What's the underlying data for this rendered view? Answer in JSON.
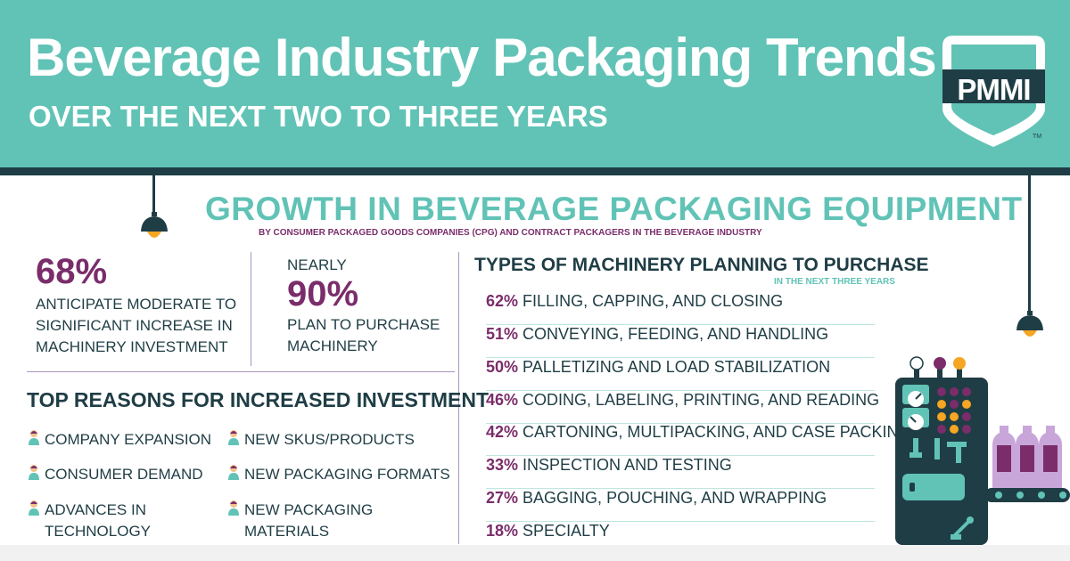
{
  "header": {
    "title": "Beverage Industry Packaging Trends",
    "subtitle": "OVER THE NEXT TWO TO THREE YEARS",
    "logo_text": "PMMI",
    "logo_tm": "TM"
  },
  "section": {
    "title": "GROWTH IN BEVERAGE PACKAGING EQUIPMENT",
    "subtitle": "BY CONSUMER PACKAGED GOODS COMPANIES (CPG) AND CONTRACT PACKAGERS IN THE BEVERAGE INDUSTRY"
  },
  "stats": {
    "left": {
      "value": "68%",
      "line1": "ANTICIPATE MODERATE TO",
      "line2": "SIGNIFICANT INCREASE IN",
      "line3": "MACHINERY INVESTMENT"
    },
    "right": {
      "prefix": "NEARLY",
      "value": "90%",
      "line1": "PLAN TO PURCHASE",
      "line2": "MACHINERY"
    }
  },
  "reasons": {
    "title": "TOP REASONS FOR INCREASED INVESTMENT",
    "items": [
      {
        "line1": "COMPANY EXPANSION",
        "line2": ""
      },
      {
        "line1": "NEW SKUS/PRODUCTS",
        "line2": ""
      },
      {
        "line1": "CONSUMER DEMAND",
        "line2": ""
      },
      {
        "line1": "NEW PACKAGING FORMATS",
        "line2": ""
      },
      {
        "line1": "ADVANCES IN",
        "line2": "TECHNOLOGY"
      },
      {
        "line1": "NEW PACKAGING",
        "line2": "MATERIALS"
      }
    ]
  },
  "types": {
    "title": "TYPES OF MACHINERY PLANNING TO PURCHASE",
    "subtitle": "IN THE NEXT THREE YEARS",
    "items": [
      {
        "pct": "62%",
        "label": "FILLING, CAPPING, AND CLOSING"
      },
      {
        "pct": "51%",
        "label": "CONVEYING, FEEDING, AND HANDLING"
      },
      {
        "pct": "50%",
        "label": "PALLETIZING AND LOAD STABILIZATION"
      },
      {
        "pct": "46%",
        "label": "CODING, LABELING, PRINTING, AND READING"
      },
      {
        "pct": "42%",
        "label": "CARTONING, MULTIPACKING, AND CASE PACKING"
      },
      {
        "pct": "33%",
        "label": "INSPECTION AND TESTING"
      },
      {
        "pct": "27%",
        "label": "BAGGING, POUCHING, AND WRAPPING"
      },
      {
        "pct": "18%",
        "label": "SPECIALTY"
      }
    ]
  },
  "colors": {
    "teal": "#61c3b6",
    "navy": "#1f3d45",
    "plum": "#7a2d6a",
    "lamp_orange": "#f5a623"
  },
  "icons": {
    "lamp": "pendant-lamp-icon",
    "person": "person-icon",
    "machine": "bottling-machine-illustration"
  }
}
